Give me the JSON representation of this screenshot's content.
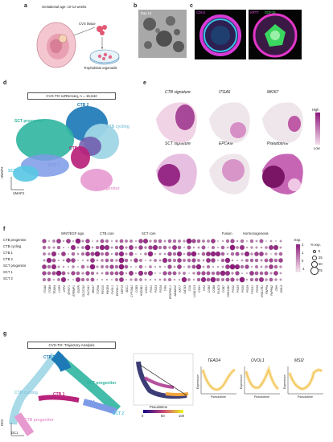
{
  "panels": {
    "a": {
      "letter": "a",
      "gestational_age": "Gestational age: 10-14 weeks",
      "cvs_tissue": "CVS tissue",
      "trophoblast": "Trophoblast organoids"
    },
    "b": {
      "letter": "b",
      "day": "Day 14"
    },
    "c": {
      "letter": "c",
      "label_cdh1": "CDH1",
      "label_krt7": "KRT7",
      "label_gdf15": "GDF15"
    },
    "d": {
      "letter": "d",
      "title": "CVS-TO scRNAseq, n = 15,642",
      "clusters": [
        "CTB 2",
        "SCT progenitor",
        "CTB cycling",
        "CTB 1",
        "SCT 1",
        "SCT 2",
        "CTB progenitor"
      ],
      "axis_x": "UMAP1",
      "axis_y": "UMAP2"
    },
    "e": {
      "letter": "e",
      "row1": [
        "CTB signature",
        "ITGA6",
        "MKI67"
      ],
      "row2": [
        "SCT signature",
        "EPCAM",
        "Pseudotime"
      ],
      "legend_high": "High",
      "legend_low": "Low"
    },
    "f": {
      "letter": "f",
      "groups": [
        "WNT/EGF sign.",
        "CTB core",
        "SCT core",
        "Fusion",
        "Hormonogenesis"
      ],
      "rows": [
        "CTB progenitor",
        "CTB cycling",
        "CTB 1",
        "CTB 2",
        "SCT progenitor",
        "SCT 1",
        "SCT 2"
      ],
      "genes": [
        "ITGA6",
        "ITGB4",
        "TEAD4",
        "LGR5",
        "LRP2",
        "SPINT1",
        "EFEMP1",
        "EGFR",
        "SLC27A2",
        "SLC2A1",
        "MKI67",
        "TOP2A",
        "PEG10",
        "PAGE4",
        "OVOL1",
        "ERVW-1",
        "GDF15",
        "SDC1",
        "CYP19A1",
        "CGB3",
        "HSD3B1",
        "KISS1",
        "PSG1",
        "PSG3",
        "PSG4",
        "TFPI",
        "ERVFRD-1",
        "ADAM12",
        "KRT7",
        "GATA3",
        "CGA",
        "LGALS13",
        "CSH1",
        "GH2",
        "CGB5",
        "CGB8",
        "PLAC4",
        "CGB7",
        "HSD11B2",
        "PSG2",
        "PSG5",
        "PSG6",
        "PSG9",
        "PSG11",
        "PSG8",
        "HSD17B1",
        "PAPPA",
        "PAPPA2",
        "CRH",
        "INSL4"
      ],
      "exp_label": "Exp.",
      "exp_ticks": [
        "2",
        "1",
        "0",
        "-1"
      ],
      "pct_label": "% exp.",
      "pct_ticks": [
        "5",
        "25",
        "50",
        "75"
      ]
    },
    "g": {
      "letter": "g",
      "title": "CVS-TO: Trajectory Analysis",
      "clusters": [
        "CTB 2",
        "SCT progenitor",
        "CTB cycling",
        "CTB 1",
        "SCT 1",
        "SCT 2",
        "CTB progenitor"
      ],
      "axis_x": "DC1",
      "axis_y": "DC2",
      "pseudotime_label": "Pseudotime",
      "pseudotime_ticks": [
        "0",
        "50",
        "100"
      ],
      "genes": [
        "TEAD4",
        "OVOL1",
        "MSI2"
      ],
      "y_axis": "Expression",
      "x_axis": "Pseudotime"
    }
  },
  "colors": {
    "ctb_prog": "#e79ad0",
    "ctb_cyc": "#9fd6e6",
    "ctb1": "#b8227a",
    "ctb2": "#1e7ab7",
    "sct_prog": "#2fb5a0",
    "sct1": "#7c9ae6",
    "sct2": "#58c7e3",
    "heat_high": "#8e1a7c",
    "heat_low": "#f3dcea",
    "trend": "#f2c14b"
  }
}
